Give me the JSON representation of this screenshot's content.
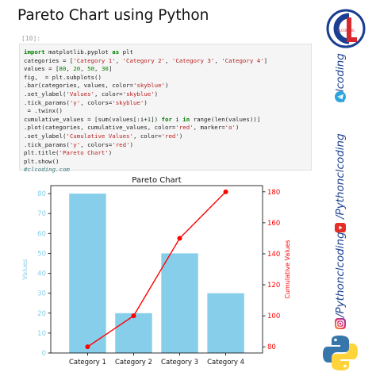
{
  "page": {
    "title": "Pareto Chart using Python",
    "cell_prompt": "[10]:"
  },
  "code": {
    "lines": [
      "import matplotlib.pyplot as plt",
      "categories = ['Category 1', 'Category 2', 'Category 3', 'Category 4']",
      "values = [80, 20, 50, 30]",
      "fig, ax1 = plt.subplots()",
      "ax1.bar(categories, values, color='skyblue')",
      "ax1.set_ylabel('Values', color='skyblue')",
      "ax1.tick_params('y', colors='skyblue')",
      "ax2 = ax1.twinx()",
      "cumulative_values = [sum(values[:i+1]) for i in range(len(values))]",
      "ax2.plot(categories, cumulative_values, color='red', marker='o')",
      "ax2.set_ylabel('Cumulative Values', color='red')",
      "ax2.tick_params('y', colors='red')",
      "plt.title('Pareto Chart')",
      "plt.show()",
      "#clcoding.com"
    ]
  },
  "chart_data": {
    "type": "bar",
    "title": "Pareto Chart",
    "categories": [
      "Category 1",
      "Category 2",
      "Category 3",
      "Category 4"
    ],
    "series": [
      {
        "name": "Values",
        "type": "bar",
        "axis": "left",
        "values": [
          80,
          20,
          50,
          30
        ],
        "color": "#87ceeb"
      },
      {
        "name": "Cumulative Values",
        "type": "line",
        "axis": "right",
        "values": [
          80,
          100,
          150,
          180
        ],
        "color": "#ff0000",
        "marker": "o"
      }
    ],
    "ylabel": "Values",
    "ylabel_right": "Cumulative Values",
    "ylim": [
      0,
      84
    ],
    "ylim_right": [
      76,
      184
    ],
    "yticks": [
      0,
      10,
      20,
      30,
      40,
      50,
      60,
      70,
      80
    ],
    "yticks_right": [
      80,
      100,
      120,
      140,
      160,
      180
    ],
    "left_axis_color": "#87ceeb",
    "right_axis_color": "#ff0000",
    "grid": false,
    "legend": "none"
  },
  "sidebar": {
    "logo_text": "CLCODING",
    "handles": [
      "/clcoding",
      "/Pythonclcoding",
      "/Pythonclcoding"
    ],
    "icons": [
      "telegram-icon",
      "youtube-icon",
      "instagram-icon",
      "python-logo-icon"
    ]
  },
  "colors": {
    "brand_navy": "#1a3e91",
    "brand_red": "#d7282f"
  }
}
